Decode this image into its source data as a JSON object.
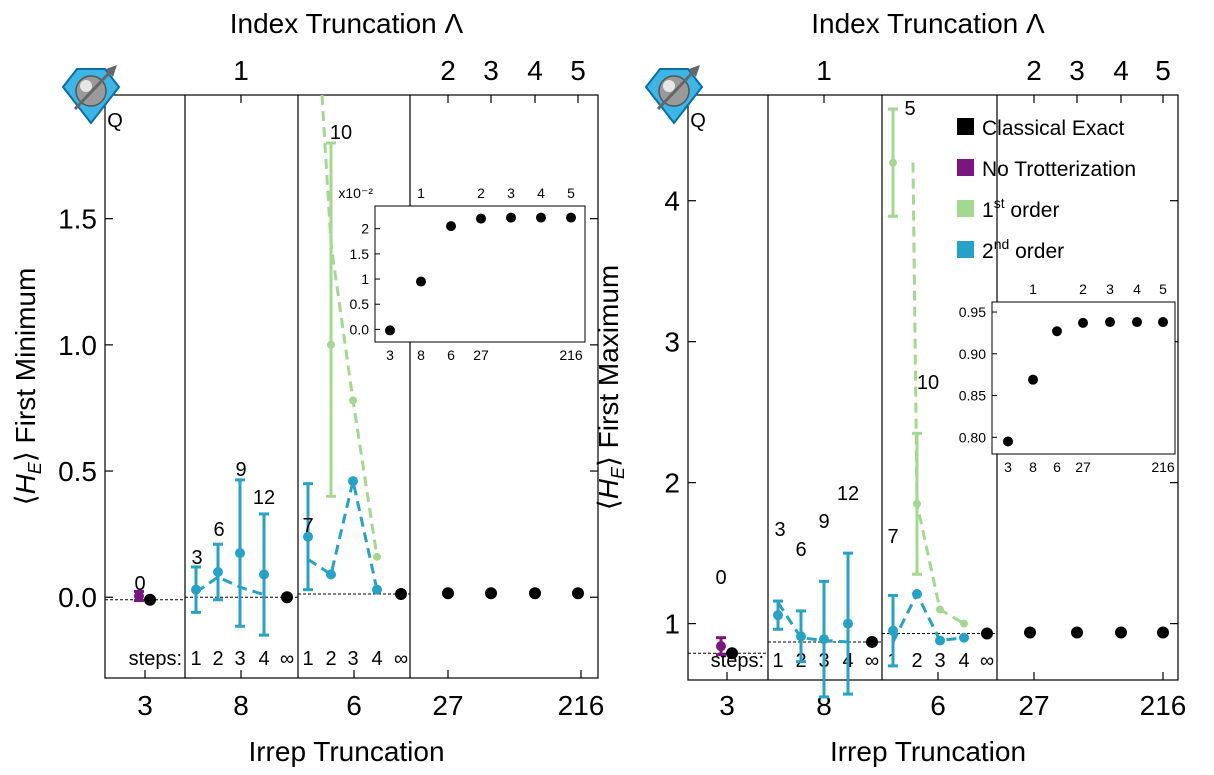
{
  "colors": {
    "classical": "#000000",
    "no_trotter": "#7b1580",
    "first_order": "#a3d98f",
    "second_order": "#24a2c8",
    "frame": "#000000"
  },
  "legend": {
    "items": [
      {
        "key": "classical",
        "label": "Classical Exact",
        "sup": "",
        "rest": ""
      },
      {
        "key": "no_trotter",
        "label": "No Trotterization",
        "sup": "",
        "rest": ""
      },
      {
        "key": "first_order",
        "label": "1",
        "sup": "st",
        "rest": " order"
      },
      {
        "key": "second_order",
        "label": "2",
        "sup": "nd",
        "rest": " order"
      }
    ]
  },
  "chart_data": [
    {
      "type": "scatter",
      "top_title": "Index Truncation  Λ",
      "xlabel": "Irrep Truncation",
      "ylabel": "⟨HE⟩  First Minimum",
      "ylabel_main": "First Minimum",
      "ylim": [
        -0.32,
        1.99
      ],
      "yticks": [
        0.0,
        0.5,
        1.0,
        1.5
      ],
      "ytick_labels": [
        "0.0",
        "0.5",
        "1.0",
        "1.5"
      ],
      "bottom_tick_labels": [
        "3",
        "8",
        "6",
        "27",
        "216"
      ],
      "top_tick_labels": [
        "1",
        "2",
        "3",
        "4",
        "5"
      ],
      "steps_label": "steps:",
      "steps_labels": [
        "1",
        "2",
        "3",
        "4",
        "∞"
      ],
      "count_labels": [
        "0",
        "3",
        "6",
        "9",
        "12",
        "7",
        "10"
      ],
      "classical_exact": [
        -0.01,
        0.0,
        0.013,
        0.016,
        0.016,
        0.016,
        0.016
      ],
      "no_trotterization": {
        "value": 0.005,
        "err": 0.018
      },
      "irrep8_second_order": {
        "points": [
          {
            "step": 1,
            "value": 0.03,
            "err": 0.09
          },
          {
            "step": 2,
            "value": 0.1,
            "err": 0.11
          },
          {
            "step": 3,
            "value": 0.175,
            "err": 0.29
          },
          {
            "step": 4,
            "value": 0.09,
            "err": 0.24
          }
        ],
        "dashed": [
          0.02,
          0.08,
          0.04,
          0.01
        ]
      },
      "irrep6_second_order": {
        "points": [
          {
            "step": 1,
            "value": 0.24,
            "err": 0.21
          },
          {
            "step": 2,
            "value": 0.09,
            "err": 0
          },
          {
            "step": 3,
            "value": 0.46,
            "err": 0
          },
          {
            "step": 4,
            "value": 0.03,
            "err": 0
          }
        ],
        "dashed": [
          0.15,
          0.09,
          0.46,
          0.03
        ]
      },
      "irrep6_first_order": {
        "points": [
          {
            "step": 2,
            "value": 1.0,
            "err": 0.6
          },
          {
            "step": 3,
            "value": 0.78,
            "err": 0
          },
          {
            "step": 4,
            "value": 0.16,
            "err": 0
          }
        ],
        "err_bar_value": 1.1,
        "err_bar_err": 0.7,
        "dashed": [
          2.1,
          1.4,
          0.78,
          0.16
        ]
      },
      "inset": {
        "multiplier_label": "x10⁻²",
        "ylim": [
          -0.25,
          2.45
        ],
        "yticks": [
          0.0,
          0.5,
          1.0,
          1.5,
          2.0
        ],
        "ytick_labels": [
          "0.0",
          "0.5",
          "1",
          "1.5",
          "2"
        ],
        "x_labels_bottom": [
          "3",
          "8",
          "6",
          "27",
          "216"
        ],
        "x_labels_top": [
          "1",
          "2",
          "3",
          "4",
          "5"
        ],
        "values": [
          -0.02,
          0.95,
          2.05,
          2.2,
          2.22,
          2.22,
          2.22
        ]
      }
    },
    {
      "type": "scatter",
      "top_title": "Index Truncation  Λ",
      "xlabel": "Irrep Truncation",
      "ylabel": "⟨HE⟩  First Maximum",
      "ylabel_main": "First Maximum",
      "ylim": [
        0.6,
        4.75
      ],
      "yticks": [
        1,
        2,
        3,
        4
      ],
      "ytick_labels": [
        "1",
        "2",
        "3",
        "4"
      ],
      "bottom_tick_labels": [
        "3",
        "8",
        "6",
        "27",
        "216"
      ],
      "top_tick_labels": [
        "1",
        "2",
        "3",
        "4",
        "5"
      ],
      "steps_label": "steps:",
      "steps_labels": [
        "1",
        "2",
        "3",
        "4",
        "∞"
      ],
      "count_labels": [
        "0",
        "3",
        "6",
        "9",
        "12",
        "7",
        "5",
        "10"
      ],
      "classical_exact": [
        0.79,
        0.87,
        0.93,
        0.937,
        0.937,
        0.937,
        0.937
      ],
      "no_trotterization": {
        "value": 0.84,
        "err": 0.06
      },
      "irrep8_second_order": {
        "points": [
          {
            "step": 1,
            "value": 1.06,
            "err": 0.1
          },
          {
            "step": 2,
            "value": 0.91,
            "err": 0.18
          },
          {
            "step": 3,
            "value": 0.89,
            "err": 0.41
          },
          {
            "step": 4,
            "value": 1.0,
            "err": 0.5
          }
        ],
        "dashed": [
          1.15,
          0.9,
          0.88,
          0.87
        ]
      },
      "irrep6_second_order": {
        "points": [
          {
            "step": 1,
            "value": 0.95,
            "err": 0.25
          },
          {
            "step": 2,
            "value": 1.21,
            "err": 0
          },
          {
            "step": 3,
            "value": 0.88,
            "err": 0
          },
          {
            "step": 4,
            "value": 0.9,
            "err": 0
          }
        ],
        "dashed": [
          0.87,
          1.21,
          0.88,
          0.9
        ]
      },
      "irrep6_first_order": {
        "points": [
          {
            "step": 1,
            "value": 4.27,
            "err": 0.38
          },
          {
            "step": 2,
            "value": 1.85,
            "err": 0.5
          },
          {
            "step": 3,
            "value": 1.1,
            "err": 0
          },
          {
            "step": 4,
            "value": 1.0,
            "err": 0
          }
        ],
        "err_bar_value": 4.27,
        "err_bar_err": 0.38,
        "dashed": [
          4.27,
          1.85,
          1.1,
          1.0
        ]
      },
      "inset": {
        "multiplier_label": "",
        "ylim": [
          0.78,
          0.962
        ],
        "yticks": [
          0.8,
          0.85,
          0.9,
          0.95
        ],
        "ytick_labels": [
          "0.80",
          "0.85",
          "0.90",
          "0.95"
        ],
        "x_labels_bottom": [
          "3",
          "8",
          "6",
          "27",
          "216"
        ],
        "x_labels_top": [
          "1",
          "2",
          "3",
          "4",
          "5"
        ],
        "values": [
          0.795,
          0.869,
          0.927,
          0.937,
          0.938,
          0.938,
          0.938
        ]
      }
    }
  ]
}
